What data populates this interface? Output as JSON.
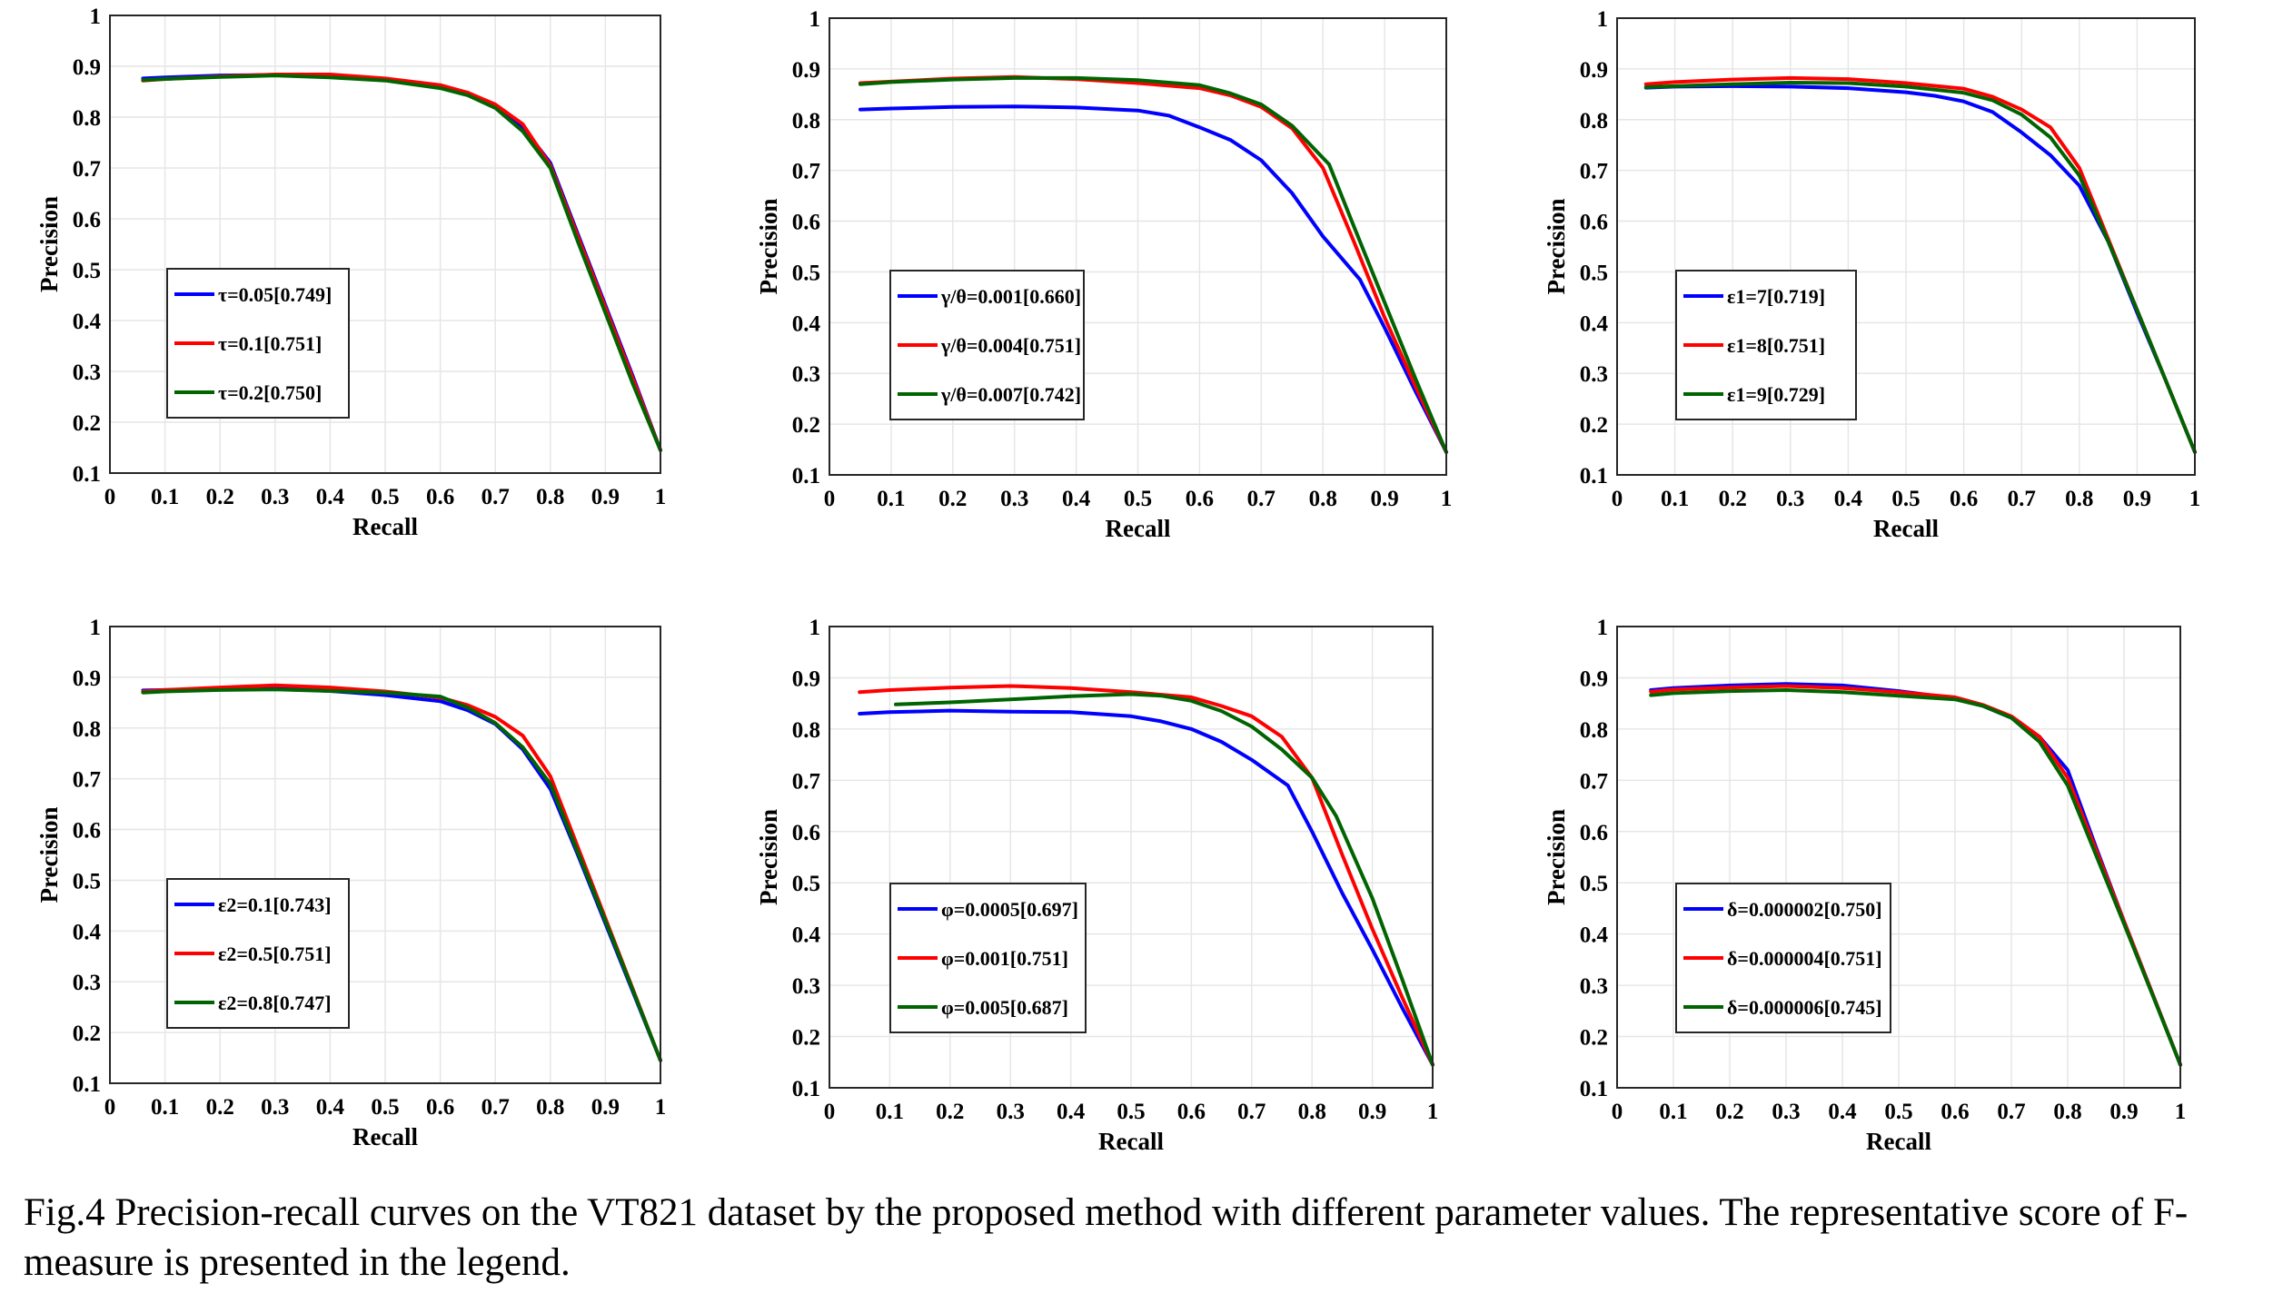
{
  "caption": "Fig.4 Precision-recall curves on the VT821 dataset by the proposed method with different parameter values. The representative score of F-measure is presented in the legend.",
  "colors": {
    "blue": "#0000ff",
    "red": "#ff0000",
    "green": "#006400"
  },
  "chart_data": [
    {
      "type": "line",
      "xlabel": "Recall",
      "ylabel": "Precision",
      "xlim": [
        0,
        1
      ],
      "ylim": [
        0.1,
        1
      ],
      "grid": true,
      "legend_placement": "center-left",
      "xticks": [
        "0",
        "0.1",
        "0.2",
        "0.3",
        "0.4",
        "0.5",
        "0.6",
        "0.7",
        "0.8",
        "0.9",
        "1"
      ],
      "yticks": [
        "0.1",
        "0.2",
        "0.3",
        "0.4",
        "0.5",
        "0.6",
        "0.7",
        "0.8",
        "0.9",
        "1"
      ],
      "series": [
        {
          "name": "τ=0.05[0.749]",
          "color": "#0000ff",
          "x": [
            0.06,
            0.1,
            0.2,
            0.3,
            0.4,
            0.5,
            0.6,
            0.65,
            0.7,
            0.75,
            0.8,
            0.85,
            0.9,
            0.95,
            1.0
          ],
          "y": [
            0.876,
            0.878,
            0.882,
            0.883,
            0.88,
            0.874,
            0.86,
            0.848,
            0.822,
            0.78,
            0.71,
            0.57,
            0.43,
            0.29,
            0.145
          ]
        },
        {
          "name": "τ=0.1[0.751]",
          "color": "#ff0000",
          "x": [
            0.06,
            0.1,
            0.2,
            0.3,
            0.4,
            0.5,
            0.6,
            0.65,
            0.7,
            0.75,
            0.8,
            0.85,
            0.9,
            0.95,
            1.0
          ],
          "y": [
            0.872,
            0.875,
            0.88,
            0.884,
            0.884,
            0.876,
            0.863,
            0.848,
            0.825,
            0.786,
            0.705,
            0.565,
            0.425,
            0.285,
            0.145
          ]
        },
        {
          "name": "τ=0.2[0.750]",
          "color": "#006400",
          "x": [
            0.06,
            0.1,
            0.2,
            0.3,
            0.4,
            0.5,
            0.6,
            0.65,
            0.7,
            0.75,
            0.8,
            0.85,
            0.9,
            0.95,
            1.0
          ],
          "y": [
            0.873,
            0.875,
            0.879,
            0.882,
            0.878,
            0.872,
            0.857,
            0.843,
            0.818,
            0.772,
            0.7,
            0.555,
            0.415,
            0.275,
            0.145
          ]
        }
      ]
    },
    {
      "type": "line",
      "xlabel": "Recall",
      "ylabel": "Precision",
      "xlim": [
        0,
        1
      ],
      "ylim": [
        0.1,
        1
      ],
      "grid": true,
      "legend_placement": "center-left",
      "xticks": [
        "0",
        "0.1",
        "0.2",
        "0.3",
        "0.4",
        "0.5",
        "0.6",
        "0.7",
        "0.8",
        "0.9",
        "1"
      ],
      "yticks": [
        "0.1",
        "0.2",
        "0.3",
        "0.4",
        "0.5",
        "0.6",
        "0.7",
        "0.8",
        "0.9",
        "1"
      ],
      "series": [
        {
          "name": "γ/θ=0.001[0.660]",
          "color": "#0000ff",
          "x": [
            0.05,
            0.1,
            0.2,
            0.3,
            0.4,
            0.5,
            0.55,
            0.6,
            0.65,
            0.7,
            0.75,
            0.8,
            0.86,
            0.9,
            0.95,
            1.0
          ],
          "y": [
            0.82,
            0.822,
            0.825,
            0.826,
            0.824,
            0.818,
            0.808,
            0.785,
            0.76,
            0.72,
            0.655,
            0.57,
            0.485,
            0.39,
            0.265,
            0.145
          ]
        },
        {
          "name": "γ/θ=0.004[0.751]",
          "color": "#ff0000",
          "x": [
            0.05,
            0.1,
            0.2,
            0.3,
            0.4,
            0.5,
            0.6,
            0.65,
            0.7,
            0.75,
            0.8,
            0.85,
            0.9,
            0.95,
            1.0
          ],
          "y": [
            0.872,
            0.875,
            0.881,
            0.884,
            0.88,
            0.872,
            0.862,
            0.848,
            0.825,
            0.783,
            0.705,
            0.56,
            0.41,
            0.275,
            0.145
          ]
        },
        {
          "name": "γ/θ=0.007[0.742]",
          "color": "#006400",
          "x": [
            0.05,
            0.1,
            0.2,
            0.3,
            0.4,
            0.5,
            0.6,
            0.65,
            0.7,
            0.75,
            0.81,
            0.85,
            0.9,
            0.95,
            1.0
          ],
          "y": [
            0.87,
            0.874,
            0.879,
            0.882,
            0.882,
            0.878,
            0.868,
            0.852,
            0.83,
            0.788,
            0.712,
            0.59,
            0.44,
            0.29,
            0.145
          ]
        }
      ]
    },
    {
      "type": "line",
      "xlabel": "Recall",
      "ylabel": "Precision",
      "xlim": [
        0,
        1
      ],
      "ylim": [
        0.1,
        1
      ],
      "grid": true,
      "legend_placement": "center-left",
      "xticks": [
        "0",
        "0.1",
        "0.2",
        "0.3",
        "0.4",
        "0.5",
        "0.6",
        "0.7",
        "0.8",
        "0.9",
        "1"
      ],
      "yticks": [
        "0.1",
        "0.2",
        "0.3",
        "0.4",
        "0.5",
        "0.6",
        "0.7",
        "0.8",
        "0.9",
        "1"
      ],
      "series": [
        {
          "name": "ε1=7[0.719]",
          "color": "#0000ff",
          "x": [
            0.05,
            0.1,
            0.2,
            0.3,
            0.4,
            0.5,
            0.55,
            0.6,
            0.65,
            0.7,
            0.75,
            0.8,
            0.85,
            0.9,
            0.95,
            1.0
          ],
          "y": [
            0.863,
            0.865,
            0.866,
            0.865,
            0.862,
            0.854,
            0.847,
            0.836,
            0.815,
            0.775,
            0.73,
            0.67,
            0.56,
            0.42,
            0.285,
            0.145
          ]
        },
        {
          "name": "ε1=8[0.751]",
          "color": "#ff0000",
          "x": [
            0.05,
            0.1,
            0.2,
            0.3,
            0.4,
            0.5,
            0.6,
            0.65,
            0.7,
            0.75,
            0.8,
            0.85,
            0.9,
            0.95,
            1.0
          ],
          "y": [
            0.87,
            0.874,
            0.879,
            0.882,
            0.88,
            0.872,
            0.861,
            0.845,
            0.82,
            0.785,
            0.705,
            0.565,
            0.425,
            0.285,
            0.145
          ]
        },
        {
          "name": "ε1=9[0.729]",
          "color": "#006400",
          "x": [
            0.05,
            0.1,
            0.2,
            0.3,
            0.4,
            0.5,
            0.6,
            0.65,
            0.7,
            0.75,
            0.8,
            0.85,
            0.9,
            0.95,
            1.0
          ],
          "y": [
            0.864,
            0.866,
            0.87,
            0.873,
            0.872,
            0.865,
            0.853,
            0.838,
            0.81,
            0.765,
            0.69,
            0.56,
            0.425,
            0.285,
            0.145
          ]
        }
      ]
    },
    {
      "type": "line",
      "xlabel": "Recall",
      "ylabel": "Precision",
      "xlim": [
        0,
        1
      ],
      "ylim": [
        0.1,
        1
      ],
      "grid": true,
      "legend_placement": "center-left",
      "xticks": [
        "0",
        "0.1",
        "0.2",
        "0.3",
        "0.4",
        "0.5",
        "0.6",
        "0.7",
        "0.8",
        "0.9",
        "1"
      ],
      "yticks": [
        "0.1",
        "0.2",
        "0.3",
        "0.4",
        "0.5",
        "0.6",
        "0.7",
        "0.8",
        "0.9",
        "1"
      ],
      "series": [
        {
          "name": "ε2=0.1[0.743]",
          "color": "#0000ff",
          "x": [
            0.06,
            0.1,
            0.2,
            0.3,
            0.4,
            0.5,
            0.6,
            0.65,
            0.7,
            0.75,
            0.8,
            0.85,
            0.9,
            0.95,
            1.0
          ],
          "y": [
            0.874,
            0.875,
            0.877,
            0.878,
            0.873,
            0.865,
            0.853,
            0.835,
            0.808,
            0.758,
            0.68,
            0.55,
            0.415,
            0.28,
            0.145
          ]
        },
        {
          "name": "ε2=0.5[0.751]",
          "color": "#ff0000",
          "x": [
            0.06,
            0.1,
            0.2,
            0.3,
            0.4,
            0.5,
            0.6,
            0.65,
            0.7,
            0.75,
            0.8,
            0.85,
            0.9,
            0.95,
            1.0
          ],
          "y": [
            0.872,
            0.875,
            0.88,
            0.884,
            0.88,
            0.872,
            0.86,
            0.845,
            0.822,
            0.785,
            0.705,
            0.565,
            0.425,
            0.285,
            0.145
          ]
        },
        {
          "name": "ε2=0.8[0.747]",
          "color": "#006400",
          "x": [
            0.06,
            0.1,
            0.2,
            0.3,
            0.4,
            0.5,
            0.6,
            0.65,
            0.7,
            0.75,
            0.8,
            0.85,
            0.9,
            0.95,
            1.0
          ],
          "y": [
            0.87,
            0.872,
            0.875,
            0.876,
            0.873,
            0.87,
            0.862,
            0.84,
            0.81,
            0.762,
            0.69,
            0.555,
            0.42,
            0.283,
            0.145
          ]
        }
      ]
    },
    {
      "type": "line",
      "xlabel": "Recall",
      "ylabel": "Precision",
      "xlim": [
        0,
        1
      ],
      "ylim": [
        0.1,
        1
      ],
      "grid": true,
      "legend_placement": "center-left",
      "xticks": [
        "0",
        "0.1",
        "0.2",
        "0.3",
        "0.4",
        "0.5",
        "0.6",
        "0.7",
        "0.8",
        "0.9",
        "1"
      ],
      "yticks": [
        "0.1",
        "0.2",
        "0.3",
        "0.4",
        "0.5",
        "0.6",
        "0.7",
        "0.8",
        "0.9",
        "1"
      ],
      "series": [
        {
          "name": "φ=0.0005[0.697]",
          "color": "#0000ff",
          "x": [
            0.05,
            0.1,
            0.2,
            0.3,
            0.4,
            0.5,
            0.55,
            0.6,
            0.65,
            0.7,
            0.76,
            0.8,
            0.85,
            0.9,
            0.95,
            1.0
          ],
          "y": [
            0.83,
            0.833,
            0.836,
            0.834,
            0.833,
            0.825,
            0.815,
            0.8,
            0.775,
            0.74,
            0.69,
            0.6,
            0.48,
            0.37,
            0.255,
            0.145
          ]
        },
        {
          "name": "φ=0.001[0.751]",
          "color": "#ff0000",
          "x": [
            0.05,
            0.1,
            0.2,
            0.3,
            0.4,
            0.5,
            0.6,
            0.65,
            0.7,
            0.75,
            0.8,
            0.85,
            0.9,
            0.95,
            1.0
          ],
          "y": [
            0.872,
            0.876,
            0.881,
            0.884,
            0.88,
            0.872,
            0.862,
            0.845,
            0.825,
            0.785,
            0.705,
            0.555,
            0.41,
            0.275,
            0.145
          ]
        },
        {
          "name": "φ=0.005[0.687]",
          "color": "#006400",
          "x": [
            0.11,
            0.2,
            0.3,
            0.4,
            0.5,
            0.55,
            0.6,
            0.65,
            0.7,
            0.75,
            0.8,
            0.84,
            0.9,
            0.95,
            1.0
          ],
          "y": [
            0.848,
            0.852,
            0.858,
            0.864,
            0.868,
            0.865,
            0.855,
            0.835,
            0.805,
            0.76,
            0.705,
            0.63,
            0.47,
            0.31,
            0.145
          ]
        }
      ]
    },
    {
      "type": "line",
      "xlabel": "Recall",
      "ylabel": "Precision",
      "xlim": [
        0,
        1
      ],
      "ylim": [
        0.1,
        1
      ],
      "grid": true,
      "legend_placement": "center-left",
      "xticks": [
        "0",
        "0.1",
        "0.2",
        "0.3",
        "0.4",
        "0.5",
        "0.6",
        "0.7",
        "0.8",
        "0.9",
        "1"
      ],
      "yticks": [
        "0.1",
        "0.2",
        "0.3",
        "0.4",
        "0.5",
        "0.6",
        "0.7",
        "0.8",
        "0.9",
        "1"
      ],
      "series": [
        {
          "name": "δ=0.000002[0.750]",
          "color": "#0000ff",
          "x": [
            0.06,
            0.1,
            0.2,
            0.3,
            0.4,
            0.5,
            0.6,
            0.65,
            0.7,
            0.75,
            0.8,
            0.85,
            0.9,
            0.95,
            1.0
          ],
          "y": [
            0.876,
            0.88,
            0.885,
            0.888,
            0.885,
            0.874,
            0.86,
            0.845,
            0.822,
            0.785,
            0.72,
            0.57,
            0.425,
            0.285,
            0.145
          ]
        },
        {
          "name": "δ=0.000004[0.751]",
          "color": "#ff0000",
          "x": [
            0.06,
            0.1,
            0.2,
            0.3,
            0.4,
            0.5,
            0.6,
            0.65,
            0.7,
            0.75,
            0.8,
            0.85,
            0.9,
            0.95,
            1.0
          ],
          "y": [
            0.873,
            0.877,
            0.881,
            0.884,
            0.88,
            0.872,
            0.862,
            0.847,
            0.825,
            0.785,
            0.705,
            0.565,
            0.425,
            0.285,
            0.145
          ]
        },
        {
          "name": "δ=0.000006[0.745]",
          "color": "#006400",
          "x": [
            0.06,
            0.1,
            0.2,
            0.3,
            0.4,
            0.5,
            0.6,
            0.65,
            0.7,
            0.75,
            0.8,
            0.85,
            0.9,
            0.95,
            1.0
          ],
          "y": [
            0.866,
            0.87,
            0.874,
            0.876,
            0.872,
            0.865,
            0.858,
            0.845,
            0.822,
            0.775,
            0.69,
            0.555,
            0.42,
            0.283,
            0.145
          ]
        }
      ]
    }
  ]
}
